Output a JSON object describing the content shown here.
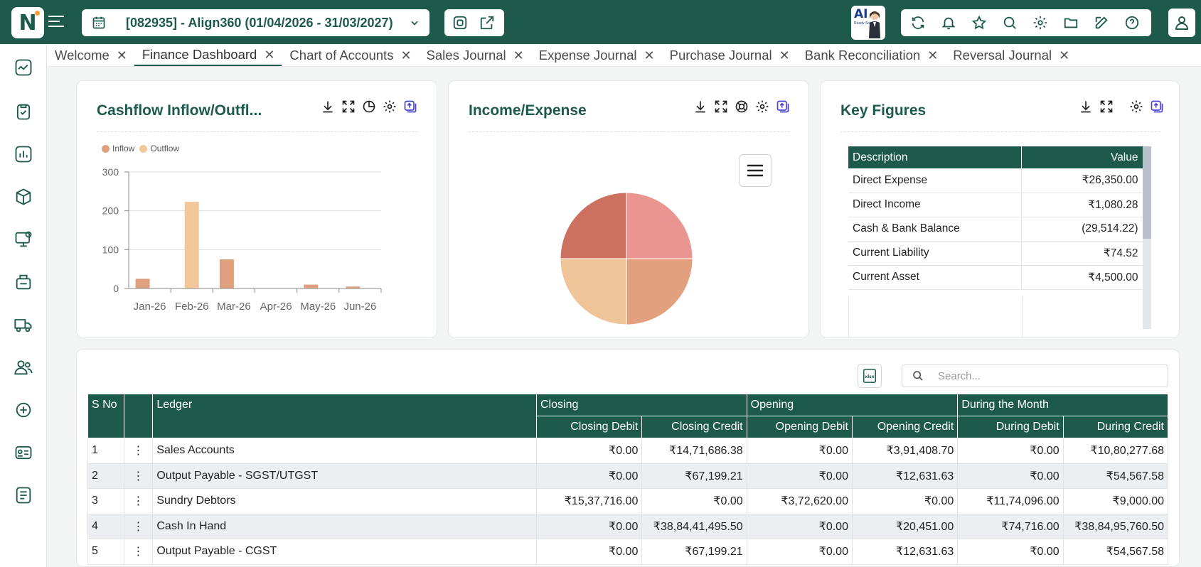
{
  "header": {
    "company": "[082935] - Align360 (01/04/2026 - 31/03/2027)",
    "ai_badge": {
      "title": "AI",
      "subtitle": "Ready Solution"
    }
  },
  "icons": {
    "logo": "logo-icon",
    "menu": "hamburger-icon",
    "calendar": "calendar-icon",
    "chevron": "chevron-down-icon",
    "toolbar": [
      "refresh-icon",
      "bell-icon",
      "star-icon",
      "search-icon",
      "gear-icon",
      "folder-icon",
      "edit-icon",
      "help-icon"
    ],
    "user": "user-icon"
  },
  "sidebar": {
    "items": [
      "dashboard-icon",
      "clipboard-check-icon",
      "reports-chart-icon",
      "box-icon",
      "monitor-settings-icon",
      "factory-icon",
      "truck-icon",
      "users-icon",
      "support-icon",
      "id-card-icon",
      "document-report-icon"
    ]
  },
  "tabs": [
    {
      "label": "Welcome",
      "active": false
    },
    {
      "label": "Finance Dashboard",
      "active": true
    },
    {
      "label": "Chart of Accounts",
      "active": false
    },
    {
      "label": "Sales Journal",
      "active": false
    },
    {
      "label": "Expense Journal",
      "active": false
    },
    {
      "label": "Purchase Journal",
      "active": false
    },
    {
      "label": "Bank Reconciliation",
      "active": false
    },
    {
      "label": "Reversal Journal",
      "active": false
    }
  ],
  "cards": {
    "cashflow": {
      "title": "Cashflow Inflow/Outfl..."
    },
    "income_expense": {
      "title": "Income/Expense"
    },
    "key_figures": {
      "title": "Key Figures",
      "columns": [
        "Description",
        "Value"
      ],
      "rows": [
        [
          "Direct Expense",
          "₹26,350.00"
        ],
        [
          "Direct Income",
          "₹1,080.28"
        ],
        [
          "Cash & Bank Balance",
          "(29,514.22)"
        ],
        [
          "Current Liability",
          "₹74.52"
        ],
        [
          "Current Asset",
          "₹4,500.00"
        ]
      ]
    }
  },
  "chart_data": [
    {
      "type": "bar",
      "categories": [
        "Jan-26",
        "Feb-26",
        "Mar-26",
        "Apr-26",
        "May-26",
        "Jun-26"
      ],
      "series": [
        {
          "name": "Inflow",
          "color": "#e0a07d",
          "values": [
            25,
            0,
            75,
            0,
            10,
            5
          ]
        },
        {
          "name": "Outflow",
          "color": "#f2c79a",
          "values": [
            0,
            223,
            0,
            0,
            0,
            0
          ]
        }
      ],
      "ylim": [
        0,
        300
      ],
      "yticks": [
        0,
        100,
        200,
        300
      ],
      "legend": "top-left",
      "grid": true
    },
    {
      "type": "pie",
      "slices": [
        {
          "value": 25,
          "color": "#eb9592"
        },
        {
          "value": 25,
          "color": "#e2a07f"
        },
        {
          "value": 25,
          "color": "#efc499"
        },
        {
          "value": 25,
          "color": "#cc705f"
        }
      ]
    }
  ],
  "ledger": {
    "search_placeholder": "Search...",
    "export_label": "xlsx",
    "group_headers": [
      "Closing",
      "Opening",
      "During the Month"
    ],
    "columns": [
      "S No",
      "",
      "Ledger",
      "Closing Debit",
      "Closing Credit",
      "Opening Debit",
      "Opening Credit",
      "During Debit",
      "During Credit"
    ],
    "rows": [
      [
        "1",
        "Sales Accounts",
        "₹0.00",
        "₹14,71,686.38",
        "₹0.00",
        "₹3,91,408.70",
        "₹0.00",
        "₹10,80,277.68"
      ],
      [
        "2",
        "Output Payable - SGST/UTGST",
        "₹0.00",
        "₹67,199.21",
        "₹0.00",
        "₹12,631.63",
        "₹0.00",
        "₹54,567.58"
      ],
      [
        "3",
        "Sundry Debtors",
        "₹15,37,716.00",
        "₹0.00",
        "₹3,72,620.00",
        "₹0.00",
        "₹11,74,096.00",
        "₹9,000.00"
      ],
      [
        "4",
        "Cash In Hand",
        "₹0.00",
        "₹38,84,41,495.50",
        "₹0.00",
        "₹20,451.00",
        "₹74,716.00",
        "₹38,84,95,760.50"
      ],
      [
        "5",
        "Output Payable - CGST",
        "₹0.00",
        "₹67,199.21",
        "₹0.00",
        "₹12,631.63",
        "₹0.00",
        "₹54,567.58"
      ]
    ]
  }
}
